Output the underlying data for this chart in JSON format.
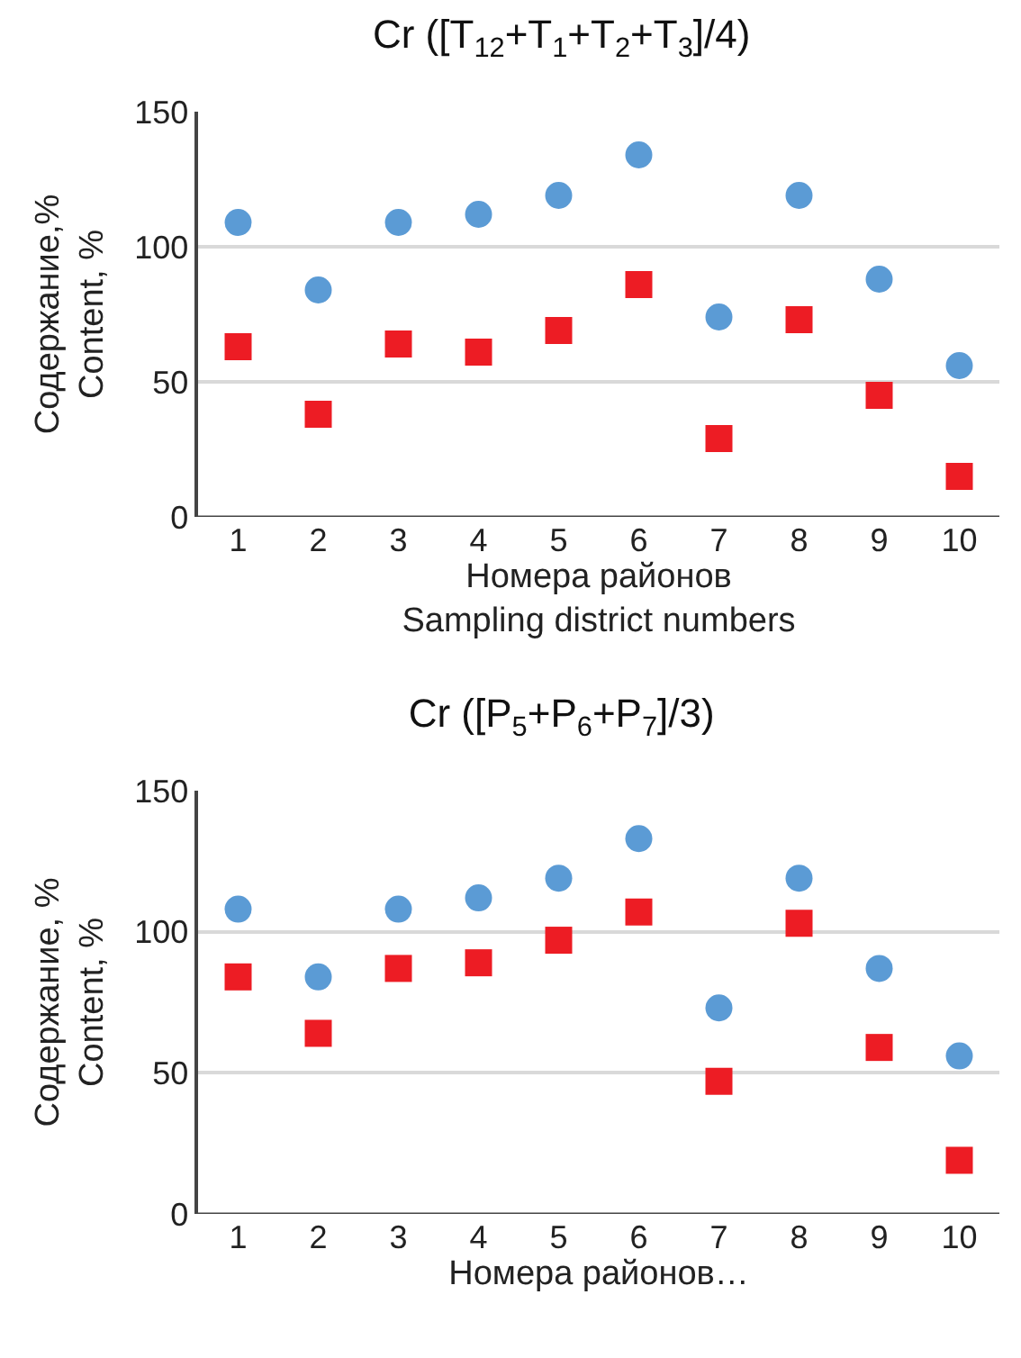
{
  "chart_data": [
    {
      "type": "scatter",
      "title": "Cr ([T$_{12}$+T$_{1}$+T$_{2}$+T$_{3}$]/4)",
      "xlabel": "Номера районов\nSampling district numbers",
      "ylabel": "Содержание,%\nContent, %",
      "categories": [
        "1",
        "2",
        "3",
        "4",
        "5",
        "6",
        "7",
        "8",
        "9",
        "10"
      ],
      "ylim": [
        0,
        150
      ],
      "yticks": [
        0,
        50,
        100,
        150
      ],
      "grid": "y",
      "series": [
        {
          "color": "#5b9bd5",
          "marker": "circle",
          "values": [
            109,
            84,
            109,
            112,
            119,
            134,
            74,
            119,
            88,
            56
          ]
        },
        {
          "color": "#ed1c24",
          "marker": "square",
          "values": [
            63,
            38,
            64,
            61,
            69,
            86,
            29,
            73,
            45,
            15
          ]
        }
      ]
    },
    {
      "type": "scatter",
      "title": "Cr ([P$_{5}$+P$_{6}$+P$_{7}$]/3)",
      "xlabel": "Номера районов…",
      "ylabel": "Содержание, %\nContent, %",
      "categories": [
        "1",
        "2",
        "3",
        "4",
        "5",
        "6",
        "7",
        "8",
        "9",
        "10"
      ],
      "ylim": [
        0,
        150
      ],
      "yticks": [
        0,
        50,
        100,
        150
      ],
      "grid": "y",
      "series": [
        {
          "color": "#5b9bd5",
          "marker": "circle",
          "values": [
            108,
            84,
            108,
            112,
            119,
            133,
            73,
            119,
            87,
            56
          ]
        },
        {
          "color": "#ed1c24",
          "marker": "square",
          "values": [
            84,
            64,
            87,
            89,
            97,
            107,
            47,
            103,
            59,
            19
          ]
        }
      ]
    }
  ]
}
